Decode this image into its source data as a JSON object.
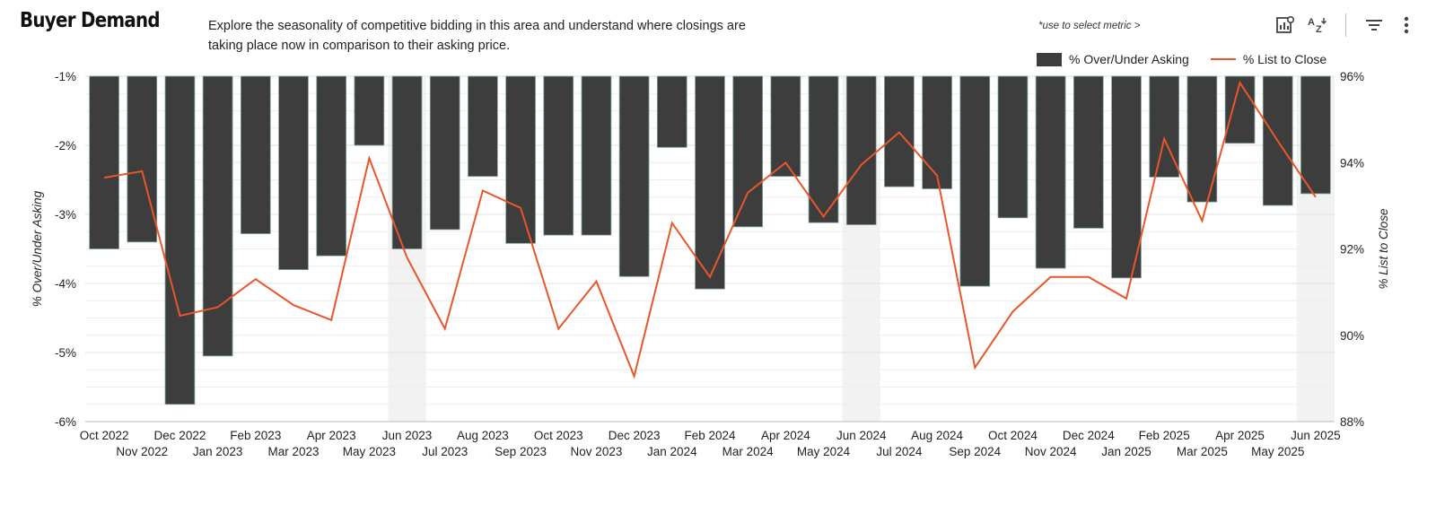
{
  "header": {
    "title": "Buyer Demand",
    "subtitle": "Explore the seasonality of competitive bidding in this area and understand where closings are taking place now in comparison to their asking price.",
    "hint": "*use to select metric >",
    "icons": [
      "chart-settings-icon",
      "sort-az-icon",
      "filter-icon",
      "more-vertical-icon"
    ]
  },
  "chart_data": {
    "type": "bar",
    "categories": [
      "Oct 2022",
      "Nov 2022",
      "Dec 2022",
      "Jan 2023",
      "Feb 2023",
      "Mar 2023",
      "Apr 2023",
      "May 2023",
      "Jun 2023",
      "Jul 2023",
      "Aug 2023",
      "Sep 2023",
      "Oct 2023",
      "Nov 2023",
      "Dec 2023",
      "Jan 2024",
      "Feb 2024",
      "Mar 2024",
      "Apr 2024",
      "May 2024",
      "Jun 2024",
      "Jul 2024",
      "Aug 2024",
      "Sep 2024",
      "Oct 2024",
      "Nov 2024",
      "Dec 2024",
      "Jan 2025",
      "Feb 2025",
      "Mar 2025",
      "Apr 2025",
      "May 2025",
      "Jun 2025"
    ],
    "series": [
      {
        "name": "% Over/Under Asking",
        "type": "bar",
        "axis": "left",
        "color": "#3d3d3d",
        "values": [
          -3.5,
          -3.4,
          -5.75,
          -5.05,
          -3.28,
          -3.8,
          -3.6,
          -2.0,
          -3.5,
          -3.22,
          -2.45,
          -3.42,
          -3.3,
          -3.3,
          -3.9,
          -2.03,
          -4.08,
          -3.18,
          -2.45,
          -3.12,
          -3.15,
          -2.6,
          -2.63,
          -4.04,
          -3.05,
          -3.78,
          -3.2,
          -3.92,
          -2.46,
          -2.82,
          -1.97,
          -2.87,
          -2.7
        ]
      },
      {
        "name": "% List to Close",
        "type": "line",
        "axis": "right",
        "color": "#e8562a",
        "values": [
          93.65,
          93.8,
          90.45,
          90.65,
          91.3,
          90.7,
          90.35,
          94.1,
          91.8,
          90.15,
          93.35,
          92.95,
          90.15,
          91.25,
          89.05,
          92.6,
          91.35,
          93.3,
          94.0,
          92.75,
          93.95,
          94.7,
          93.7,
          89.25,
          90.55,
          91.35,
          91.35,
          90.85,
          94.55,
          92.65,
          95.85,
          94.5,
          93.2
        ]
      }
    ],
    "highlighted_months": [
      "Jun 2023",
      "Jun 2024",
      "Jun 2025"
    ],
    "y_left": {
      "label": "% Over/Under Asking",
      "min": -6,
      "max": -1,
      "ticks": [
        "-1%",
        "-2%",
        "-3%",
        "-4%",
        "-5%",
        "-6%"
      ]
    },
    "y_right": {
      "label": "% List to Close",
      "min": 88,
      "max": 96,
      "ticks": [
        "96%",
        "94%",
        "92%",
        "90%",
        "88%"
      ]
    },
    "legend_position": "top-right",
    "grid": true
  }
}
